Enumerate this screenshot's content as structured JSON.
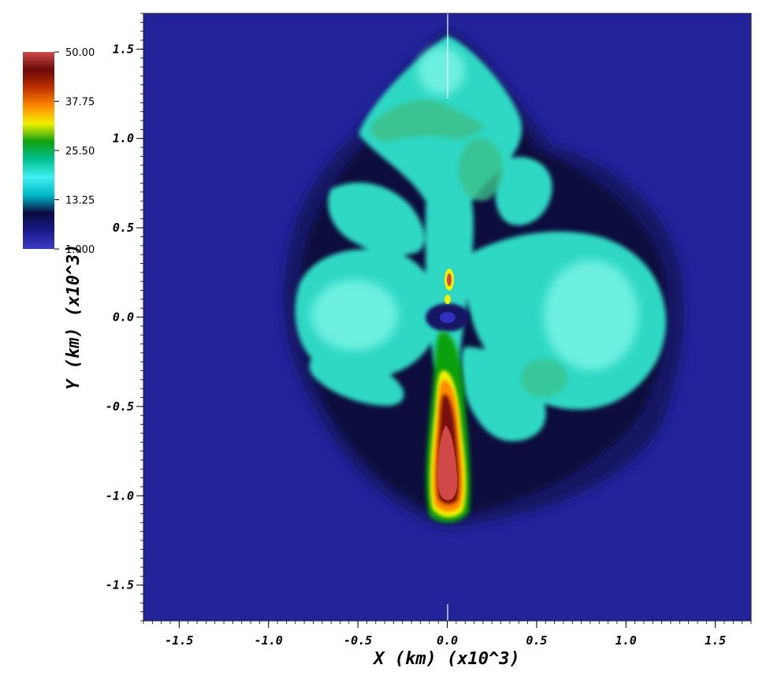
{
  "chart_data": {
    "type": "heatmap",
    "xlabel": "X (km) (x10^3)",
    "ylabel": "Y (km) (x10^3)",
    "xlim": [
      -1.7,
      1.7
    ],
    "ylim": [
      -1.7,
      1.7
    ],
    "x_ticks": [
      -1.5,
      -1.0,
      -0.5,
      0.0,
      0.5,
      1.0,
      1.5
    ],
    "x_tick_labels": [
      "-1.5",
      "-1.0",
      "-0.5",
      "0.0",
      "0.5",
      "1.0",
      "1.5"
    ],
    "y_ticks": [
      1.5,
      1.0,
      0.5,
      0.0,
      -0.5,
      -1.0,
      -1.5
    ],
    "y_tick_labels": [
      "1.5",
      "1.0",
      "0.5",
      "0.0",
      "-0.5",
      "-1.0",
      "-1.5"
    ],
    "colorbar": {
      "min": 1.0,
      "max": 50.0,
      "tick_values": [
        50.0,
        37.75,
        25.5,
        13.25,
        1.0
      ],
      "tick_labels": [
        "50.00",
        "37.75",
        "25.50",
        "13.25",
        "1.000"
      ],
      "colors": [
        "#3b3bc8",
        "#1a1a8a",
        "#0a0a40",
        "#00b8c8",
        "#40f0f0",
        "#00c090",
        "#10a010",
        "#f0f000",
        "#ff8800",
        "#c03000",
        "#6a0a0a",
        "#d04848"
      ]
    },
    "colors": {
      "background_field": "#23239a",
      "outer_shell": "#141464",
      "dark_edge": "#0a0a3c",
      "plume": "#2fd8c4",
      "plume_light": "#6ef0e0",
      "plume_green": "#3cc08a",
      "hot_red": "#d04848",
      "hot_dark": "#7a0a0a",
      "hot_orange": "#ff8800",
      "hot_yellow": "#f0f000"
    }
  }
}
